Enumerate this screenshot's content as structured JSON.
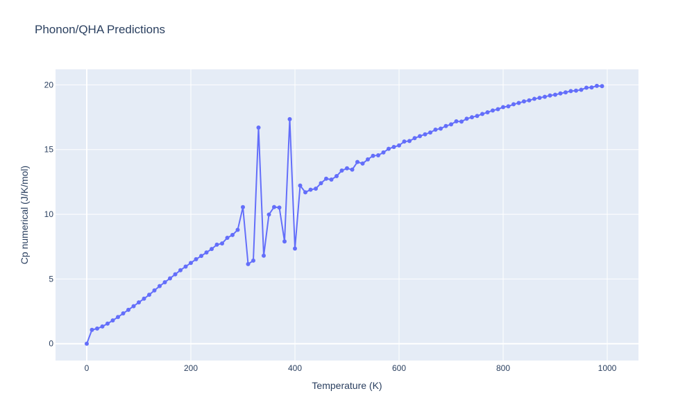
{
  "chart_data": {
    "type": "line",
    "title": "Phonon/QHA Predictions",
    "xlabel": "Temperature (K)",
    "ylabel": "Cp numerical (J/K/mol)",
    "xlim": [
      -60,
      1060
    ],
    "ylim": [
      -1.3,
      21.2
    ],
    "xticks": [
      0,
      200,
      400,
      600,
      800,
      1000
    ],
    "xtick_labels": [
      "0",
      "200",
      "400",
      "600",
      "800",
      "1000"
    ],
    "yticks": [
      0,
      5,
      10,
      15,
      20
    ],
    "ytick_labels": [
      "0",
      "5",
      "10",
      "15",
      "20"
    ],
    "grid": true,
    "legend": "none",
    "colors": {
      "line": "#636efa",
      "plot_bg": "#e5ecf6",
      "grid": "#ffffff"
    },
    "series": [
      {
        "x": [
          0,
          10,
          20,
          30,
          40,
          50,
          60,
          70,
          80,
          90,
          100,
          110,
          120,
          130,
          140,
          150,
          160,
          170,
          180,
          190,
          200,
          210,
          220,
          230,
          240,
          250,
          260,
          270,
          280,
          290,
          300,
          310,
          320,
          330,
          340,
          350,
          360,
          370,
          380,
          390,
          400,
          410,
          420,
          430,
          440,
          450,
          460,
          470,
          480,
          490,
          500,
          510,
          520,
          530,
          540,
          550,
          560,
          570,
          580,
          590,
          600,
          610,
          620,
          630,
          640,
          650,
          660,
          670,
          680,
          690,
          700,
          710,
          720,
          730,
          740,
          750,
          760,
          770,
          780,
          790,
          800,
          810,
          820,
          830,
          840,
          850,
          860,
          870,
          880,
          890,
          900,
          910,
          920,
          930,
          940,
          950,
          960,
          970,
          980,
          990
        ],
        "y": [
          0.0,
          1.07,
          1.17,
          1.33,
          1.55,
          1.8,
          2.06,
          2.34,
          2.62,
          2.9,
          3.19,
          3.48,
          3.78,
          4.12,
          4.45,
          4.75,
          5.05,
          5.36,
          5.68,
          5.96,
          6.24,
          6.53,
          6.78,
          7.05,
          7.32,
          7.65,
          7.75,
          8.18,
          8.4,
          8.8,
          10.55,
          6.15,
          6.42,
          16.7,
          6.8,
          9.98,
          10.56,
          10.52,
          7.9,
          17.35,
          7.35,
          12.22,
          11.7,
          11.9,
          11.98,
          12.4,
          12.75,
          12.68,
          12.95,
          13.38,
          13.55,
          13.45,
          14.04,
          13.92,
          14.24,
          14.52,
          14.56,
          14.78,
          15.06,
          15.2,
          15.32,
          15.62,
          15.66,
          15.88,
          16.04,
          16.18,
          16.32,
          16.54,
          16.62,
          16.82,
          16.95,
          17.18,
          17.16,
          17.38,
          17.5,
          17.6,
          17.75,
          17.88,
          18.02,
          18.12,
          18.28,
          18.34,
          18.5,
          18.6,
          18.72,
          18.8,
          18.92,
          19.0,
          19.08,
          19.18,
          19.24,
          19.34,
          19.42,
          19.52,
          19.55,
          19.62,
          19.78,
          19.8,
          19.92,
          19.9
        ]
      }
    ]
  }
}
